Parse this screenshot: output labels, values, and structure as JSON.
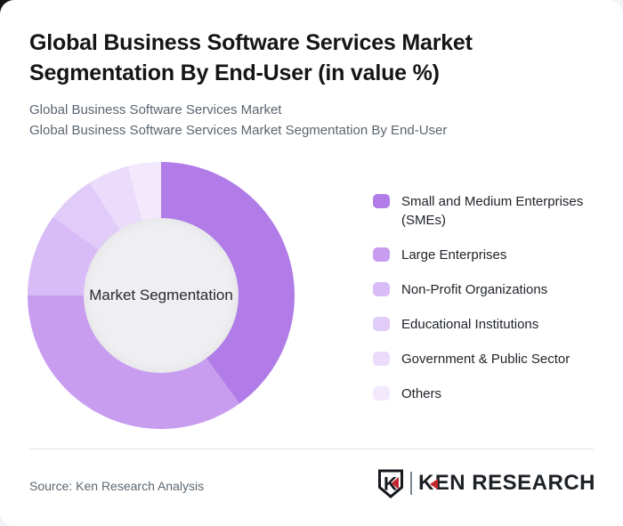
{
  "page": {
    "title_lines": [
      "Global Business Software Services Market",
      "Segmentation By End-User (in value %)"
    ],
    "subtitle_lines": [
      "Global Business Software Services Market",
      "Global Business Software Services Market Segmentation By End-User"
    ]
  },
  "chart_data": {
    "type": "pie",
    "variant": "donut",
    "title": "Global Business Software Services Market Segmentation By End-User (in value %)",
    "center_label": "Market Segmentation",
    "units": "percent of value",
    "legend_position": "right",
    "start_angle_deg": 0,
    "segments": [
      {
        "label": "Small and Medium Enterprises (SMEs)",
        "value": 40,
        "color": "#b17ce7"
      },
      {
        "label": "Large Enterprises",
        "value": 35,
        "color": "#c89df0"
      },
      {
        "label": "Non-Profit Organizations",
        "value": 10,
        "color": "#d9bbf7"
      },
      {
        "label": "Educational Institutions",
        "value": 6,
        "color": "#e1cbf8"
      },
      {
        "label": "Government & Public Sector",
        "value": 5,
        "color": "#ebdcfb"
      },
      {
        "label": "Others",
        "value": 4,
        "color": "#f2e9fc"
      }
    ]
  },
  "footer": {
    "source": "Source: Ken Research Analysis",
    "logo": {
      "shield_letter": "K",
      "wordmark_k": "K",
      "wordmark_rest": "EN RESEARCH",
      "accent_color": "#c0272d",
      "text_color": "#1d2126"
    }
  }
}
